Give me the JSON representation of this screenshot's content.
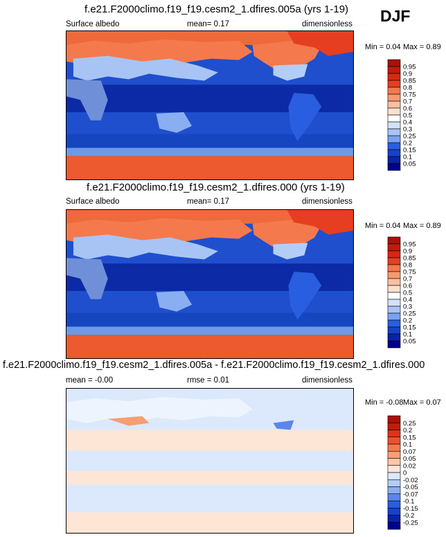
{
  "season": "DJF",
  "colors": {
    "albedo_scale": [
      "#00008c",
      "#0a23a4",
      "#1542c8",
      "#2a5ee0",
      "#4a7ce8",
      "#7aa2f0",
      "#a8c4f5",
      "#d2e2fa",
      "#ffffff",
      "#fde0d0",
      "#fbc0a0",
      "#f89a70",
      "#f47a4e",
      "#ee5a30",
      "#e53e20",
      "#d42a14",
      "#c01c0c",
      "#a81208"
    ],
    "diff_scale": [
      "#00008c",
      "#0a23a4",
      "#1542c8",
      "#2a5ee0",
      "#5a86ea",
      "#8aaef2",
      "#b4cdf6",
      "#dce8fb",
      "#ffffff",
      "#fde6d6",
      "#fbc6aa",
      "#f89e74",
      "#f47a4e",
      "#ec5230",
      "#dc341a",
      "#c01c0c",
      "#a81208"
    ],
    "continent_fill": "#6f8fd8",
    "ocean_fill": "#0c2aa6"
  },
  "chart_data": [
    {
      "type": "heatmap",
      "title": "f.e21.F2000climo.f19_f19.cesm2_1.dfires.005a (yrs 1-19)",
      "left_label": "Surface albedo",
      "center_label": "mean=  0.17",
      "right_label": "dimensionless",
      "min_label": "Min =  0.04",
      "max_label": "Max =  0.89",
      "colorbar_levels": [
        "0.95",
        "0.9",
        "0.85",
        "0.8",
        "0.75",
        "0.7",
        "0.6",
        "0.5",
        "0.4",
        "0.3",
        "0.25",
        "0.2",
        "0.15",
        "0.1",
        "0.05"
      ]
    },
    {
      "type": "heatmap",
      "title": "f.e21.F2000climo.f19_f19.cesm2_1.dfires.000 (yrs 1-19)",
      "left_label": "Surface albedo",
      "center_label": "mean=  0.17",
      "right_label": "dimensionless",
      "min_label": "Min =  0.04",
      "max_label": "Max =  0.89",
      "colorbar_levels": [
        "0.95",
        "0.9",
        "0.85",
        "0.8",
        "0.75",
        "0.7",
        "0.6",
        "0.5",
        "0.4",
        "0.3",
        "0.25",
        "0.2",
        "0.15",
        "0.1",
        "0.05"
      ]
    },
    {
      "type": "heatmap",
      "title": "f.e21.F2000climo.f19_f19.cesm2_1.dfires.005a - f.e21.F2000climo.f19_f19.cesm2_1.dfires.000",
      "left_label": "mean = -0.00",
      "center_label": "rmse =  0.01",
      "right_label": "dimensionless",
      "min_label": "Min = -0.08",
      "max_label": "Max =  0.07",
      "colorbar_levels": [
        "0.25",
        "0.2",
        "0.15",
        "0.1",
        "0.07",
        "0.05",
        "0.02",
        "0",
        "-0.02",
        "-0.05",
        "-0.07",
        "-0.1",
        "-0.15",
        "-0.2",
        "-0.25"
      ]
    }
  ]
}
